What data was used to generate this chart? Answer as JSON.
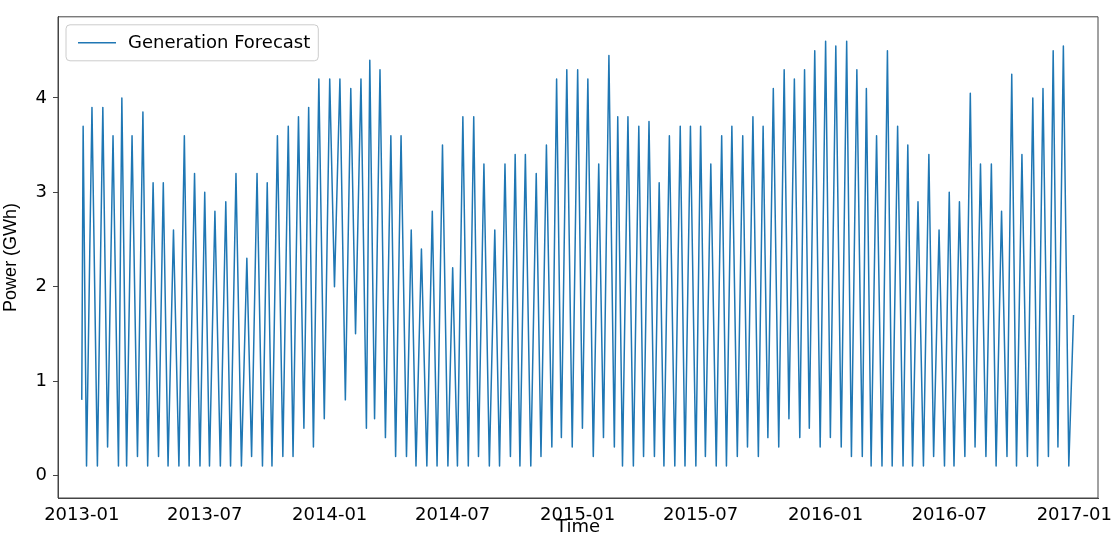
{
  "chart_data": {
    "type": "line",
    "xlabel": "Time",
    "ylabel": "Power (GWh)",
    "legend": "top left",
    "marker": "none",
    "line_style": "solid",
    "grid": false,
    "xlim": [
      "2012-11-27",
      "2017-02-05"
    ],
    "ylim": [
      -0.24,
      4.86
    ],
    "yticks": [
      0,
      1,
      2,
      3,
      4
    ],
    "xticks": [
      "2013-01",
      "2013-07",
      "2014-01",
      "2014-07",
      "2015-01",
      "2015-07",
      "2016-01",
      "2016-07",
      "2017-01"
    ],
    "x": [
      "2013-01-01",
      "2013-01-03",
      "2013-01-08",
      "2013-01-16",
      "2013-01-24",
      "2013-02-01",
      "2013-02-08",
      "2013-02-16",
      "2013-02-24",
      "2013-03-01",
      "2013-03-08",
      "2013-03-16",
      "2013-03-24",
      "2013-04-01",
      "2013-04-08",
      "2013-04-16",
      "2013-04-24",
      "2013-05-01",
      "2013-05-08",
      "2013-05-16",
      "2013-05-24",
      "2013-06-01",
      "2013-06-08",
      "2013-06-16",
      "2013-06-24",
      "2013-07-01",
      "2013-07-08",
      "2013-07-16",
      "2013-07-24",
      "2013-08-01",
      "2013-08-08",
      "2013-08-16",
      "2013-08-24",
      "2013-09-01",
      "2013-09-08",
      "2013-09-16",
      "2013-09-24",
      "2013-10-01",
      "2013-10-08",
      "2013-10-16",
      "2013-10-24",
      "2013-11-01",
      "2013-11-08",
      "2013-11-16",
      "2013-11-24",
      "2013-12-01",
      "2013-12-08",
      "2013-12-16",
      "2013-12-24",
      "2014-01-01",
      "2014-01-08",
      "2014-01-16",
      "2014-01-24",
      "2014-02-01",
      "2014-02-08",
      "2014-02-16",
      "2014-02-24",
      "2014-03-01",
      "2014-03-08",
      "2014-03-16",
      "2014-03-24",
      "2014-04-01",
      "2014-04-08",
      "2014-04-16",
      "2014-04-24",
      "2014-05-01",
      "2014-05-08",
      "2014-05-16",
      "2014-05-24",
      "2014-06-01",
      "2014-06-08",
      "2014-06-16",
      "2014-06-24",
      "2014-07-01",
      "2014-07-08",
      "2014-07-16",
      "2014-07-24",
      "2014-08-01",
      "2014-08-08",
      "2014-08-16",
      "2014-08-24",
      "2014-09-01",
      "2014-09-08",
      "2014-09-16",
      "2014-09-24",
      "2014-10-01",
      "2014-10-08",
      "2014-10-16",
      "2014-10-24",
      "2014-11-01",
      "2014-11-08",
      "2014-11-16",
      "2014-11-24",
      "2014-12-01",
      "2014-12-08",
      "2014-12-16",
      "2014-12-24",
      "2015-01-01",
      "2015-01-08",
      "2015-01-16",
      "2015-01-24",
      "2015-02-01",
      "2015-02-08",
      "2015-02-16",
      "2015-02-24",
      "2015-03-01",
      "2015-03-08",
      "2015-03-16",
      "2015-03-24",
      "2015-04-01",
      "2015-04-08",
      "2015-04-16",
      "2015-04-24",
      "2015-05-01",
      "2015-05-08",
      "2015-05-16",
      "2015-05-24",
      "2015-06-01",
      "2015-06-08",
      "2015-06-16",
      "2015-06-24",
      "2015-07-01",
      "2015-07-08",
      "2015-07-16",
      "2015-07-24",
      "2015-08-01",
      "2015-08-08",
      "2015-08-16",
      "2015-08-24",
      "2015-09-01",
      "2015-09-08",
      "2015-09-16",
      "2015-09-24",
      "2015-10-01",
      "2015-10-08",
      "2015-10-16",
      "2015-10-24",
      "2015-11-01",
      "2015-11-08",
      "2015-11-16",
      "2015-11-24",
      "2015-12-01",
      "2015-12-08",
      "2015-12-16",
      "2015-12-24",
      "2016-01-01",
      "2016-01-08",
      "2016-01-16",
      "2016-01-24",
      "2016-02-01",
      "2016-02-08",
      "2016-02-16",
      "2016-02-24",
      "2016-03-01",
      "2016-03-08",
      "2016-03-16",
      "2016-03-24",
      "2016-04-01",
      "2016-04-08",
      "2016-04-16",
      "2016-04-24",
      "2016-05-01",
      "2016-05-08",
      "2016-05-16",
      "2016-05-24",
      "2016-06-01",
      "2016-06-08",
      "2016-06-16",
      "2016-06-24",
      "2016-07-01",
      "2016-07-08",
      "2016-07-16",
      "2016-07-24",
      "2016-08-01",
      "2016-08-08",
      "2016-08-16",
      "2016-08-24",
      "2016-09-01",
      "2016-09-08",
      "2016-09-16",
      "2016-09-24",
      "2016-10-01",
      "2016-10-08",
      "2016-10-16",
      "2016-10-24",
      "2016-11-01",
      "2016-11-08",
      "2016-11-16",
      "2016-11-24",
      "2016-12-01",
      "2016-12-08",
      "2016-12-16",
      "2016-12-24",
      "2016-12-31"
    ],
    "series": [
      {
        "name": "Generation Forecast",
        "color": "#1f77b4",
        "values": [
          0.8,
          3.7,
          0.1,
          3.9,
          0.1,
          3.9,
          0.3,
          3.6,
          0.1,
          4.0,
          0.1,
          3.6,
          0.2,
          3.85,
          0.1,
          3.1,
          0.2,
          3.1,
          0.1,
          2.6,
          0.1,
          3.6,
          0.1,
          3.2,
          0.1,
          3.0,
          0.1,
          2.8,
          0.1,
          2.9,
          0.1,
          3.2,
          0.1,
          2.3,
          0.2,
          3.2,
          0.1,
          3.1,
          0.1,
          3.6,
          0.2,
          3.7,
          0.2,
          3.8,
          0.5,
          3.9,
          0.3,
          4.2,
          0.6,
          4.2,
          2.0,
          4.2,
          0.8,
          4.1,
          1.5,
          4.2,
          0.5,
          4.4,
          0.6,
          4.3,
          0.4,
          3.6,
          0.2,
          3.6,
          0.2,
          2.6,
          0.1,
          2.4,
          0.1,
          2.8,
          0.1,
          3.5,
          0.1,
          2.2,
          0.1,
          3.8,
          0.1,
          3.8,
          0.2,
          3.3,
          0.1,
          2.6,
          0.1,
          3.3,
          0.2,
          3.4,
          0.1,
          3.4,
          0.1,
          3.2,
          0.2,
          3.5,
          0.3,
          4.2,
          0.4,
          4.3,
          0.3,
          4.3,
          0.5,
          4.2,
          0.2,
          3.3,
          0.4,
          4.45,
          0.3,
          3.8,
          0.1,
          3.8,
          0.1,
          3.7,
          0.2,
          3.75,
          0.2,
          3.1,
          0.1,
          3.6,
          0.1,
          3.7,
          0.1,
          3.7,
          0.1,
          3.7,
          0.2,
          3.3,
          0.1,
          3.6,
          0.1,
          3.7,
          0.2,
          3.6,
          0.3,
          3.8,
          0.2,
          3.7,
          0.4,
          4.1,
          0.3,
          4.3,
          0.6,
          4.2,
          0.4,
          4.3,
          0.5,
          4.5,
          0.3,
          4.6,
          0.4,
          4.55,
          0.3,
          4.6,
          0.2,
          4.3,
          0.2,
          4.1,
          0.1,
          3.6,
          0.1,
          4.5,
          0.1,
          3.7,
          0.1,
          3.5,
          0.1,
          2.9,
          0.1,
          3.4,
          0.2,
          2.6,
          0.1,
          3.0,
          0.1,
          2.9,
          0.2,
          4.05,
          0.3,
          3.3,
          0.2,
          3.3,
          0.1,
          2.8,
          0.2,
          4.25,
          0.1,
          3.4,
          0.2,
          4.0,
          0.1,
          4.1,
          0.2,
          4.5,
          0.3,
          4.55,
          0.1,
          1.7
        ]
      }
    ]
  }
}
